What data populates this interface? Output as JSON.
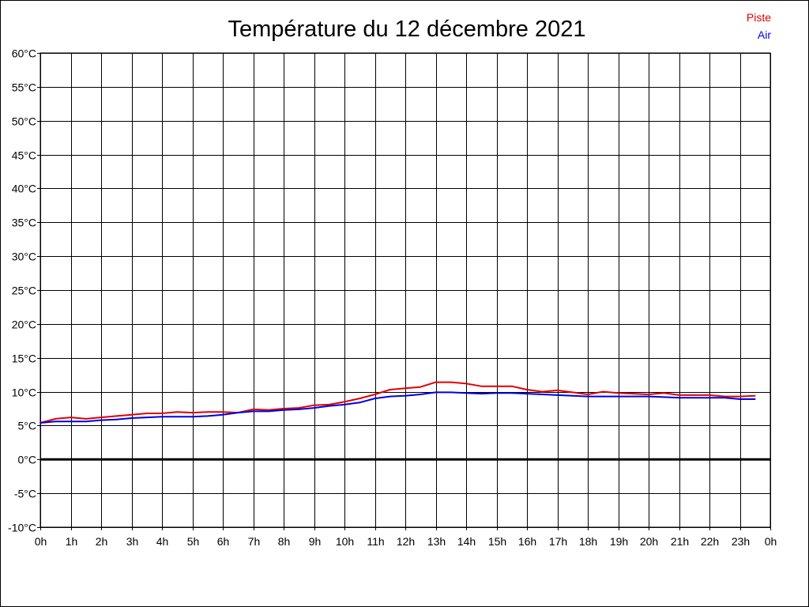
{
  "chart_data": {
    "type": "line",
    "title": "Température du 12 décembre 2021",
    "xlabel": "",
    "ylabel": "",
    "x_ticks": [
      "0h",
      "1h",
      "2h",
      "3h",
      "4h",
      "5h",
      "6h",
      "7h",
      "8h",
      "9h",
      "10h",
      "11h",
      "12h",
      "13h",
      "14h",
      "15h",
      "16h",
      "17h",
      "18h",
      "19h",
      "20h",
      "21h",
      "22h",
      "23h",
      "0h"
    ],
    "y_ticks": [
      "60°C",
      "55°C",
      "50°C",
      "45°C",
      "40°C",
      "35°C",
      "30°C",
      "25°C",
      "20°C",
      "15°C",
      "10°C",
      "5°C",
      "0°C",
      "-5°C",
      "-10°C"
    ],
    "xlim": [
      0,
      24
    ],
    "ylim": [
      -10,
      60
    ],
    "grid": true,
    "legend_position": "top-right",
    "zero_line": true,
    "series": [
      {
        "name": "Piste",
        "color": "#e00000",
        "x": [
          0,
          0.5,
          1,
          1.5,
          2,
          2.5,
          3,
          3.5,
          4,
          4.5,
          5,
          5.5,
          6,
          6.5,
          7,
          7.5,
          8,
          8.5,
          9,
          9.5,
          10,
          10.5,
          11,
          11.5,
          12,
          12.5,
          13,
          13.5,
          14,
          14.5,
          15,
          15.5,
          16,
          16.5,
          17,
          17.5,
          18,
          18.5,
          19,
          19.5,
          20,
          20.5,
          21,
          21.5,
          22,
          22.5,
          23,
          23.5
        ],
        "y": [
          5.4,
          6.0,
          6.2,
          6.0,
          6.2,
          6.4,
          6.6,
          6.8,
          6.8,
          7.0,
          6.9,
          7.0,
          7.0,
          6.9,
          7.4,
          7.3,
          7.5,
          7.6,
          8.0,
          8.1,
          8.5,
          9.0,
          9.6,
          10.3,
          10.5,
          10.7,
          11.4,
          11.4,
          11.2,
          10.8,
          10.8,
          10.8,
          10.3,
          10.0,
          10.2,
          9.9,
          9.6,
          10.0,
          9.8,
          9.7,
          9.6,
          9.8,
          9.5,
          9.5,
          9.5,
          9.3,
          9.3,
          9.4
        ]
      },
      {
        "name": "Air",
        "color": "#0000e0",
        "x": [
          0,
          0.5,
          1,
          1.5,
          2,
          2.5,
          3,
          3.5,
          4,
          4.5,
          5,
          5.5,
          6,
          6.5,
          7,
          7.5,
          8,
          8.5,
          9,
          9.5,
          10,
          10.5,
          11,
          11.5,
          12,
          12.5,
          13,
          13.5,
          14,
          14.5,
          15,
          15.5,
          16,
          16.5,
          17,
          17.5,
          18,
          18.5,
          19,
          19.5,
          20,
          20.5,
          21,
          21.5,
          22,
          22.5,
          23,
          23.5
        ],
        "y": [
          5.4,
          5.6,
          5.6,
          5.6,
          5.8,
          5.9,
          6.1,
          6.2,
          6.3,
          6.3,
          6.3,
          6.4,
          6.6,
          6.9,
          7.1,
          7.1,
          7.3,
          7.4,
          7.6,
          7.9,
          8.1,
          8.4,
          9.0,
          9.3,
          9.4,
          9.6,
          9.9,
          9.9,
          9.8,
          9.7,
          9.8,
          9.8,
          9.7,
          9.6,
          9.5,
          9.4,
          9.3,
          9.3,
          9.3,
          9.3,
          9.3,
          9.2,
          9.1,
          9.1,
          9.1,
          9.1,
          8.9,
          8.9
        ]
      }
    ]
  }
}
